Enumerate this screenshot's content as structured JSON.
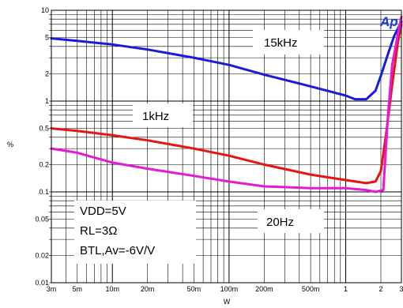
{
  "chart_data": {
    "type": "line",
    "xlabel": "W",
    "ylabel": "%",
    "x_scale": "log",
    "y_scale": "log",
    "xlim": [
      0.003,
      3
    ],
    "ylim": [
      0.01,
      10
    ],
    "grid": true,
    "x_tick_labels": [
      {
        "value": 0.003,
        "label": "3m"
      },
      {
        "value": 0.005,
        "label": "5m"
      },
      {
        "value": 0.01,
        "label": "10m"
      },
      {
        "value": 0.02,
        "label": "20m"
      },
      {
        "value": 0.05,
        "label": "50m"
      },
      {
        "value": 0.1,
        "label": "100m"
      },
      {
        "value": 0.2,
        "label": "200m"
      },
      {
        "value": 0.5,
        "label": "500m"
      },
      {
        "value": 1,
        "label": "1"
      },
      {
        "value": 2,
        "label": "2"
      },
      {
        "value": 3,
        "label": "3"
      }
    ],
    "y_tick_labels": [
      {
        "value": 0.01,
        "label": "0.01"
      },
      {
        "value": 0.02,
        "label": "0.02"
      },
      {
        "value": 0.05,
        "label": "0.05"
      },
      {
        "value": 0.1,
        "label": "0.1"
      },
      {
        "value": 0.2,
        "label": "0.2"
      },
      {
        "value": 0.5,
        "label": "0.5"
      },
      {
        "value": 1,
        "label": "1"
      },
      {
        "value": 2,
        "label": "2"
      },
      {
        "value": 5,
        "label": "5"
      },
      {
        "value": 10,
        "label": "10"
      }
    ],
    "series": [
      {
        "name": "15kHz",
        "color": "#1a1adc",
        "points": [
          [
            0.003,
            4.9
          ],
          [
            0.005,
            4.6
          ],
          [
            0.01,
            4.2
          ],
          [
            0.02,
            3.7
          ],
          [
            0.05,
            3.0
          ],
          [
            0.1,
            2.5
          ],
          [
            0.2,
            1.95
          ],
          [
            0.5,
            1.45
          ],
          [
            1,
            1.15
          ],
          [
            1.2,
            1.05
          ],
          [
            1.5,
            1.05
          ],
          [
            1.8,
            1.3
          ],
          [
            2,
            1.9
          ],
          [
            2.3,
            3.3
          ],
          [
            2.6,
            5.2
          ],
          [
            3,
            7.5
          ]
        ]
      },
      {
        "name": "1kHz",
        "color": "#e61414",
        "points": [
          [
            0.003,
            0.5
          ],
          [
            0.005,
            0.47
          ],
          [
            0.01,
            0.42
          ],
          [
            0.02,
            0.37
          ],
          [
            0.05,
            0.3
          ],
          [
            0.1,
            0.25
          ],
          [
            0.2,
            0.2
          ],
          [
            0.5,
            0.155
          ],
          [
            1,
            0.135
          ],
          [
            1.5,
            0.125
          ],
          [
            1.8,
            0.13
          ],
          [
            2,
            0.17
          ],
          [
            2.2,
            0.4
          ],
          [
            2.5,
            1.5
          ],
          [
            2.8,
            4.5
          ],
          [
            3,
            7.0
          ]
        ]
      },
      {
        "name": "20Hz",
        "color": "#e619d6",
        "points": [
          [
            0.003,
            0.3
          ],
          [
            0.005,
            0.27
          ],
          [
            0.01,
            0.21
          ],
          [
            0.02,
            0.18
          ],
          [
            0.05,
            0.15
          ],
          [
            0.1,
            0.13
          ],
          [
            0.2,
            0.115
          ],
          [
            0.5,
            0.11
          ],
          [
            1,
            0.11
          ],
          [
            1.5,
            0.105
          ],
          [
            1.8,
            0.1
          ],
          [
            2.1,
            0.105
          ],
          [
            2.3,
            0.7
          ],
          [
            2.5,
            2.5
          ],
          [
            2.8,
            5.5
          ],
          [
            3,
            8.5
          ]
        ]
      }
    ],
    "annotations": [
      {
        "text": "15kHz",
        "x": 0.2,
        "y": 4.5
      },
      {
        "text": "1kHz",
        "x": 0.019,
        "y": 0.8
      },
      {
        "text": "20Hz",
        "x": 0.18,
        "y": 0.042
      }
    ],
    "conditions": [
      "VDD=5V",
      "RL=3Ω",
      "BTL,Av=-6V/V"
    ]
  }
}
